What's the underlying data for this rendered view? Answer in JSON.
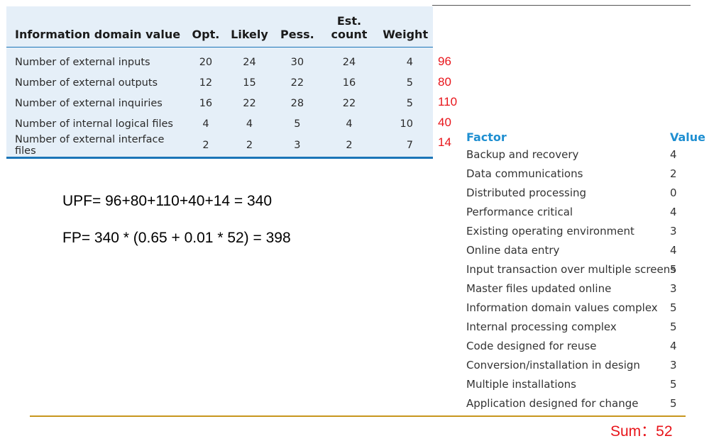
{
  "domain_table": {
    "headers": {
      "name": "Information domain value",
      "opt": "Opt.",
      "likely": "Likely",
      "pess": "Pess.",
      "est_line1": "Est.",
      "est_line2": "count",
      "weight": "Weight"
    },
    "rows": [
      {
        "name": "Number of external inputs",
        "opt": "20",
        "likely": "24",
        "pess": "30",
        "est": "24",
        "weight": "4",
        "result": "96"
      },
      {
        "name": "Number of external outputs",
        "opt": "12",
        "likely": "15",
        "pess": "22",
        "est": "16",
        "weight": "5",
        "result": "80"
      },
      {
        "name": "Number of external inquiries",
        "opt": "16",
        "likely": "22",
        "pess": "28",
        "est": "22",
        "weight": "5",
        "result": "110"
      },
      {
        "name": "Number of internal logical files",
        "opt": "4",
        "likely": "4",
        "pess": "5",
        "est": "4",
        "weight": "10",
        "result": "40"
      },
      {
        "name": "Number of external interface files",
        "opt": "2",
        "likely": "2",
        "pess": "3",
        "est": "2",
        "weight": "7",
        "result": "14"
      }
    ]
  },
  "formulas": {
    "upf": "UPF= 96+80+110+40+14 = 340",
    "fp": "FP= 340 * (0.65 + 0.01 * 52) = 398"
  },
  "factor_table": {
    "header_factor": "Factor",
    "header_value": "Value",
    "rows": [
      {
        "name": "Backup and recovery",
        "value": "4"
      },
      {
        "name": "Data communications",
        "value": "2"
      },
      {
        "name": "Distributed processing",
        "value": "0"
      },
      {
        "name": "Performance critical",
        "value": "4"
      },
      {
        "name": "Existing operating environment",
        "value": "3"
      },
      {
        "name": "Online data entry",
        "value": "4"
      },
      {
        "name": "Input transaction over multiple screens",
        "value": "5"
      },
      {
        "name": "Master files updated online",
        "value": "3"
      },
      {
        "name": "Information domain values complex",
        "value": "5"
      },
      {
        "name": "Internal processing complex",
        "value": "5"
      },
      {
        "name": "Code designed for reuse",
        "value": "4"
      },
      {
        "name": "Conversion/installation in design",
        "value": "3"
      },
      {
        "name": "Multiple installations",
        "value": "5"
      },
      {
        "name": "Application designed for change",
        "value": "5"
      }
    ]
  },
  "sum": "Sum：52",
  "colors": {
    "table_bg": "#e5eff8",
    "rule_blue": "#1b75b8",
    "header_blue": "#1f8fd1",
    "result_red": "#e8141a",
    "bottom_rule": "#c8961e"
  }
}
